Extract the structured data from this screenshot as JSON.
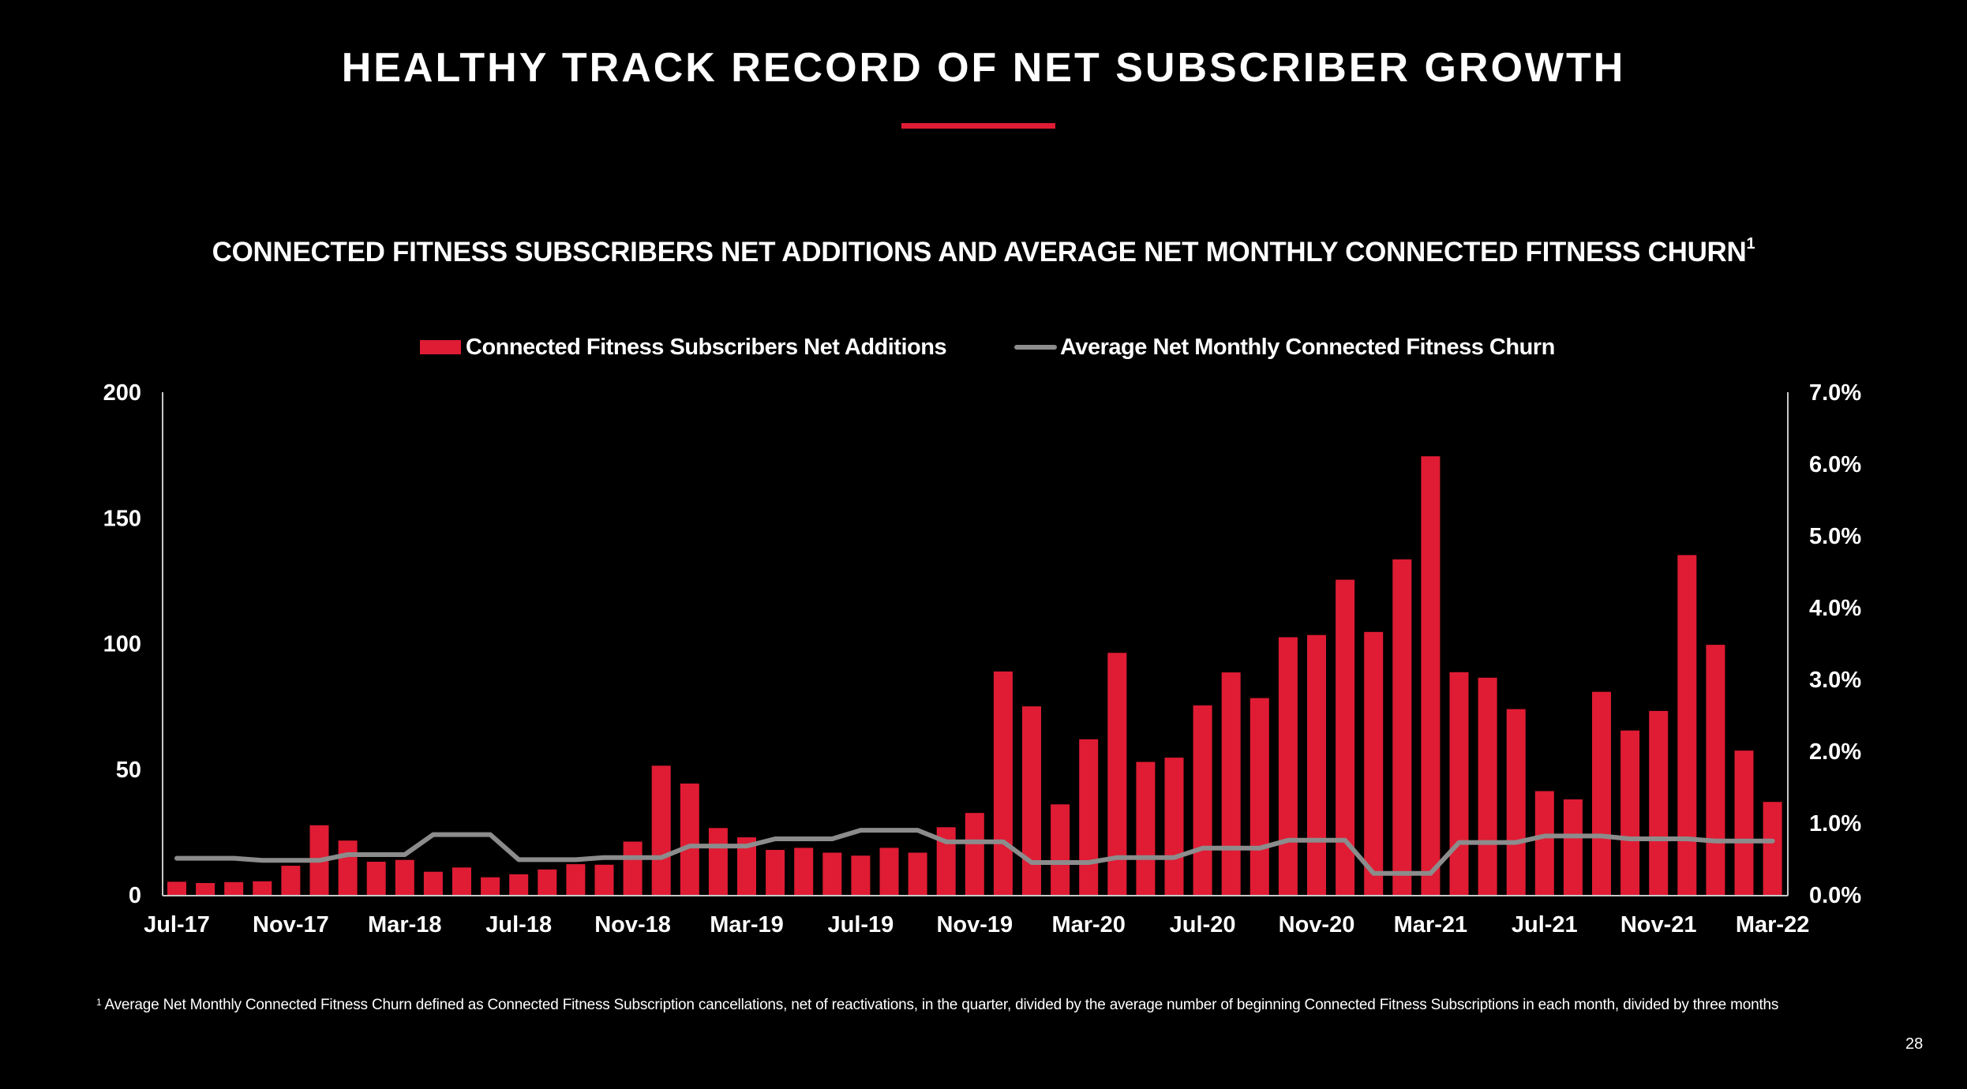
{
  "slide": {
    "title": "HEALTHY TRACK RECORD OF NET SUBSCRIBER GROWTH",
    "accent_color": "#DF1C33",
    "page_number": "28"
  },
  "chart_data": {
    "type": "bar",
    "title": "CONNECTED FITNESS SUBSCRIBERS NET ADDITIONS AND AVERAGE NET MONTHLY CONNECTED FITNESS CHURN",
    "title_footnote_marker": "1",
    "xlabel": "",
    "ylabel": "",
    "y2label": "",
    "legend_position": "top-center",
    "grid": false,
    "categories": [
      "Jul-17",
      "Aug-17",
      "Sep-17",
      "Oct-17",
      "Nov-17",
      "Dec-17",
      "Jan-18",
      "Feb-18",
      "Mar-18",
      "Apr-18",
      "May-18",
      "Jun-18",
      "Jul-18",
      "Aug-18",
      "Sep-18",
      "Oct-18",
      "Nov-18",
      "Dec-18",
      "Jan-19",
      "Feb-19",
      "Mar-19",
      "Apr-19",
      "May-19",
      "Jun-19",
      "Jul-19",
      "Aug-19",
      "Sep-19",
      "Oct-19",
      "Nov-19",
      "Dec-19",
      "Jan-20",
      "Feb-20",
      "Mar-20",
      "Apr-20",
      "May-20",
      "Jun-20",
      "Jul-20",
      "Aug-20",
      "Sep-20",
      "Oct-20",
      "Nov-20",
      "Dec-20",
      "Jan-21",
      "Feb-21",
      "Mar-21",
      "Apr-21",
      "May-21",
      "Jun-21",
      "Jul-21",
      "Aug-21",
      "Sep-21",
      "Oct-21",
      "Nov-21",
      "Dec-21",
      "Jan-22",
      "Feb-22",
      "Mar-22"
    ],
    "x_tick_labels": [
      "Jul-17",
      "Nov-17",
      "Mar-18",
      "Jul-18",
      "Nov-18",
      "Mar-19",
      "Jul-19",
      "Nov-19",
      "Mar-20",
      "Jul-20",
      "Nov-20",
      "Mar-21",
      "Jul-21",
      "Nov-21",
      "Mar-22"
    ],
    "x_tick_every": 4,
    "ylim": [
      0,
      200
    ],
    "y_ticks": [
      0,
      50,
      100,
      150,
      200
    ],
    "y_tick_labels": [
      "0",
      "50",
      "100",
      "150",
      "200"
    ],
    "y2lim": [
      0,
      7.0
    ],
    "y2_ticks": [
      0,
      1,
      2,
      3,
      4,
      5,
      6,
      7
    ],
    "y2_tick_labels": [
      "0.0%",
      "1.0%",
      "2.0%",
      "3.0%",
      "4.0%",
      "5.0%",
      "6.0%",
      "7.0%"
    ],
    "series": [
      {
        "name": "Connected Fitness Subscribers Net Additions",
        "type": "bar",
        "axis": "left",
        "color": "#DF1C33",
        "values": [
          5.2,
          4.7,
          5.1,
          5.4,
          11.6,
          27.7,
          21.6,
          13.2,
          13.9,
          9.2,
          10.9,
          7.0,
          8.2,
          10.1,
          12.2,
          12.0,
          21.2,
          51.4,
          44.3,
          26.6,
          22.9,
          17.9,
          18.7,
          16.8,
          15.6,
          18.7,
          16.8,
          26.9,
          32.6,
          88.9,
          75.0,
          36.0,
          61.9,
          96.3,
          52.9,
          54.6,
          75.4,
          88.5,
          78.3,
          102.5,
          103.4,
          125.4,
          104.6,
          133.5,
          174.5,
          88.6,
          86.4,
          73.9,
          41.3,
          38.0,
          80.8,
          65.4,
          73.2,
          135.2,
          99.5,
          57.4,
          37.0
        ]
      },
      {
        "name": "Average Net Monthly Connected Fitness Churn",
        "type": "line",
        "axis": "right",
        "unit": "%",
        "color": "#8C8C8C",
        "values": [
          0.51,
          0.51,
          0.51,
          0.48,
          0.48,
          0.48,
          0.56,
          0.56,
          0.56,
          0.84,
          0.84,
          0.84,
          0.49,
          0.49,
          0.49,
          0.52,
          0.52,
          0.52,
          0.68,
          0.68,
          0.68,
          0.78,
          0.78,
          0.78,
          0.9,
          0.9,
          0.9,
          0.74,
          0.74,
          0.74,
          0.45,
          0.45,
          0.45,
          0.52,
          0.52,
          0.52,
          0.65,
          0.65,
          0.65,
          0.76,
          0.76,
          0.76,
          0.3,
          0.3,
          0.3,
          0.73,
          0.73,
          0.73,
          0.82,
          0.82,
          0.82,
          0.78,
          0.78,
          0.78,
          0.75,
          0.75,
          0.75
        ]
      }
    ],
    "footnote": "Average Net Monthly Connected Fitness Churn defined as Connected Fitness Subscription cancellations, net of reactivations, in the quarter, divided by the average number of beginning Connected Fitness Subscriptions in each month, divided by three months",
    "footnote_marker": "1"
  }
}
